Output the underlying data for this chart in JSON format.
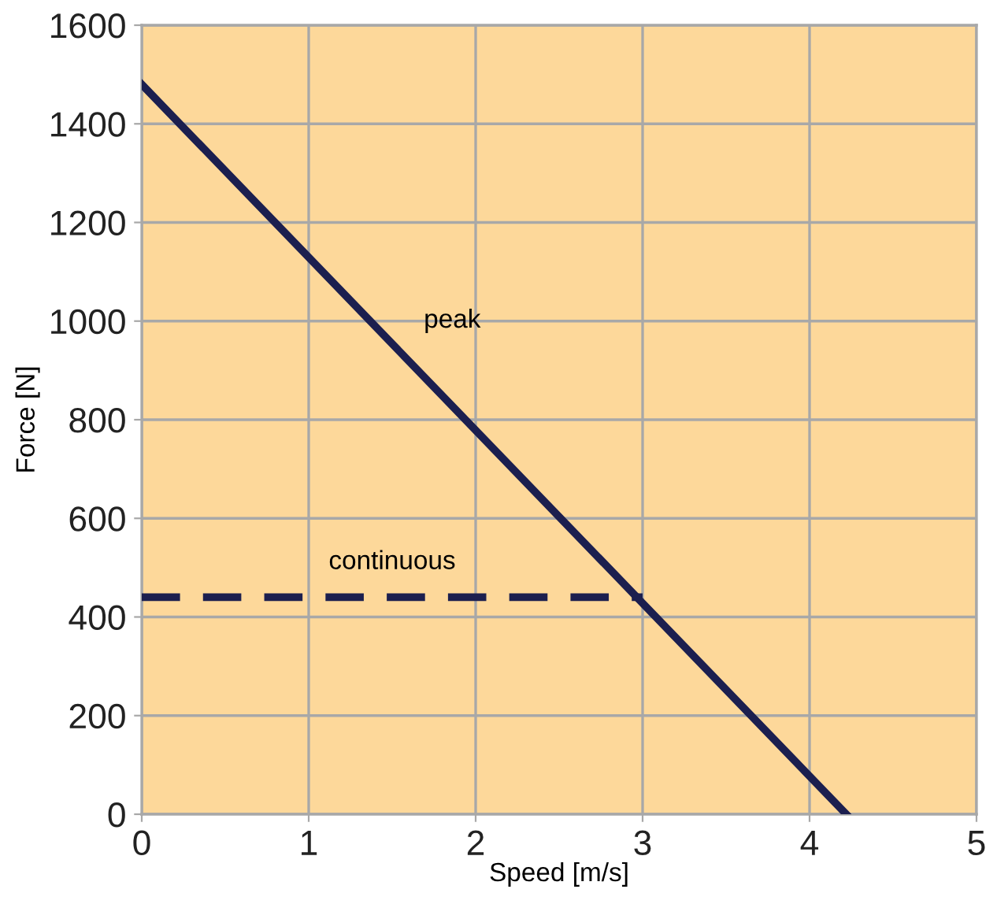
{
  "chart_data": {
    "type": "line",
    "xlabel": "Speed [m/s]",
    "ylabel": "Force [N]",
    "xlim": [
      0,
      5
    ],
    "ylim": [
      0,
      1600
    ],
    "xticks": [
      0,
      1,
      2,
      3,
      4,
      5
    ],
    "yticks": [
      0,
      200,
      400,
      600,
      800,
      1000,
      1200,
      1400,
      1600
    ],
    "grid": true,
    "series": [
      {
        "name": "peak",
        "color": "#1c1f4f",
        "x": [
          0,
          4.22
        ],
        "values": [
          1480,
          0
        ],
        "line_style": "solid"
      },
      {
        "name": "continuous",
        "color": "#1c1f4f",
        "x": [
          0,
          3
        ],
        "values": [
          440,
          440
        ],
        "line_style": "dashed"
      }
    ]
  }
}
